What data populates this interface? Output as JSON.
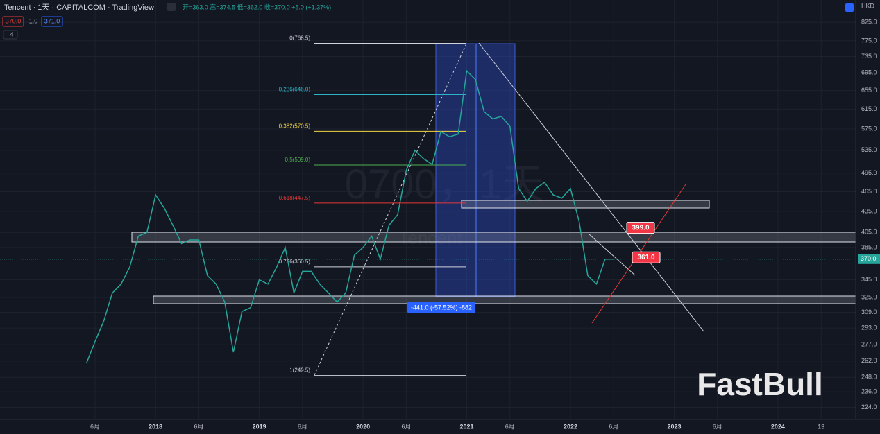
{
  "chart_data": {
    "type": "line",
    "log_scale": true,
    "header": {
      "symbol": "Tencent · 1天 · CAPITALCOM · TradingView",
      "ohlc": "开=363.0 高=374.5 低=362.0 收=370.0 +5.0 (+1.37%)",
      "sell": "370.0",
      "spread": "1.0",
      "buy": "371.0",
      "indicators": "4",
      "currency": "HKD"
    },
    "watermark": [
      "0700，1天",
      "Tencent"
    ],
    "logo": "FastBull",
    "current_price": {
      "value": 370,
      "label": "370.0",
      "color": "#26a69a"
    },
    "callouts": [
      {
        "value": 399,
        "label": "399.0"
      },
      {
        "value": 361,
        "label": "361.0"
      }
    ],
    "measure": "-441.0 (-57.52%) -882",
    "fib_levels": [
      {
        "value": 768.5,
        "label": "0(768.5)",
        "color": "#d1d4dc"
      },
      {
        "value": 646,
        "label": "0.236(646.0)",
        "color": "#2ab5c9"
      },
      {
        "value": 570.5,
        "label": "0.382(570.5)",
        "color": "#f5d742"
      },
      {
        "value": 509,
        "label": "0.5(509.0)",
        "color": "#4caf50"
      },
      {
        "value": 447.5,
        "label": "0.618(447.5)",
        "color": "#e53935"
      },
      {
        "value": 360.5,
        "label": "0.786(360.5)",
        "color": "#d1d4dc"
      },
      {
        "value": 249.5,
        "label": "1(249.5)",
        "color": "#d1d4dc"
      }
    ],
    "x": [
      "2017-05",
      "2017-06",
      "2017-07",
      "2017-08",
      "2017-09",
      "2017-10",
      "2017-11",
      "2017-12",
      "2018-01",
      "2018-02",
      "2018-03",
      "2018-04",
      "2018-05",
      "2018-06",
      "2018-07",
      "2018-08",
      "2018-09",
      "2018-10",
      "2018-11",
      "2018-12",
      "2019-01",
      "2019-02",
      "2019-03",
      "2019-04",
      "2019-05",
      "2019-06",
      "2019-07",
      "2019-08",
      "2019-09",
      "2019-10",
      "2019-11",
      "2019-12",
      "2020-01",
      "2020-02",
      "2020-03",
      "2020-04",
      "2020-05",
      "2020-06",
      "2020-07",
      "2020-08",
      "2020-09",
      "2020-10",
      "2020-11",
      "2020-12",
      "2021-01",
      "2021-02",
      "2021-03",
      "2021-04",
      "2021-05",
      "2021-06",
      "2021-07",
      "2021-08",
      "2021-09",
      "2021-10",
      "2021-11",
      "2021-12",
      "2022-01",
      "2022-02",
      "2022-03",
      "2022-04",
      "2022-05",
      "2022-06"
    ],
    "series": [
      {
        "name": "Tencent",
        "color": "#26a69a",
        "values": [
          260,
          280,
          300,
          330,
          340,
          360,
          400,
          405,
          460,
          440,
          415,
          390,
          395,
          395,
          350,
          340,
          320,
          270,
          310,
          314,
          345,
          340,
          360,
          385,
          330,
          355,
          355,
          340,
          330,
          320,
          330,
          375,
          385,
          400,
          370,
          415,
          430,
          500,
          535,
          520,
          510,
          570,
          560,
          565,
          700,
          680,
          610,
          595,
          600,
          580,
          470,
          450,
          470,
          480,
          460,
          455,
          470,
          420,
          350,
          340,
          370,
          370
        ]
      }
    ],
    "xlim": [
      "2016-07",
      "2024-10"
    ],
    "xticks": [
      {
        "value": "2017-06",
        "label": "6月"
      },
      {
        "value": "2018-01",
        "label": "2018"
      },
      {
        "value": "2018-06",
        "label": "6月"
      },
      {
        "value": "2019-01",
        "label": "2019"
      },
      {
        "value": "2019-06",
        "label": "6月"
      },
      {
        "value": "2020-01",
        "label": "2020"
      },
      {
        "value": "2020-06",
        "label": "6月"
      },
      {
        "value": "2021-01",
        "label": "2021"
      },
      {
        "value": "2021-06",
        "label": "6月"
      },
      {
        "value": "2022-01",
        "label": "2022"
      },
      {
        "value": "2022-06",
        "label": "6月"
      },
      {
        "value": "2023-01",
        "label": "2023"
      },
      {
        "value": "2023-06",
        "label": "6月"
      },
      {
        "value": "2024-01",
        "label": "2024"
      },
      {
        "value": "2024-06",
        "label": "13"
      }
    ],
    "ylim": [
      215,
      890
    ],
    "yticks": [
      {
        "value": 825,
        "label": "825.0"
      },
      {
        "value": 775,
        "label": "775.0"
      },
      {
        "value": 735,
        "label": "735.0"
      },
      {
        "value": 695,
        "label": "695.0"
      },
      {
        "value": 655,
        "label": "655.0"
      },
      {
        "value": 615,
        "label": "615.0"
      },
      {
        "value": 575,
        "label": "575.0"
      },
      {
        "value": 535,
        "label": "535.0"
      },
      {
        "value": 495,
        "label": "495.0"
      },
      {
        "value": 465,
        "label": "465.0"
      },
      {
        "value": 435,
        "label": "435.0"
      },
      {
        "value": 405,
        "label": "405.0"
      },
      {
        "value": 385,
        "label": "385.0"
      },
      {
        "value": 345,
        "label": "345.0"
      },
      {
        "value": 325,
        "label": "325.0"
      },
      {
        "value": 309,
        "label": "309.0"
      },
      {
        "value": 293,
        "label": "293.0"
      },
      {
        "value": 277,
        "label": "277.0"
      },
      {
        "value": 262,
        "label": "262.0"
      },
      {
        "value": 248,
        "label": "248.0"
      },
      {
        "value": 236,
        "label": "236.0"
      },
      {
        "value": 224,
        "label": "224.0"
      }
    ],
    "grid": true
  }
}
